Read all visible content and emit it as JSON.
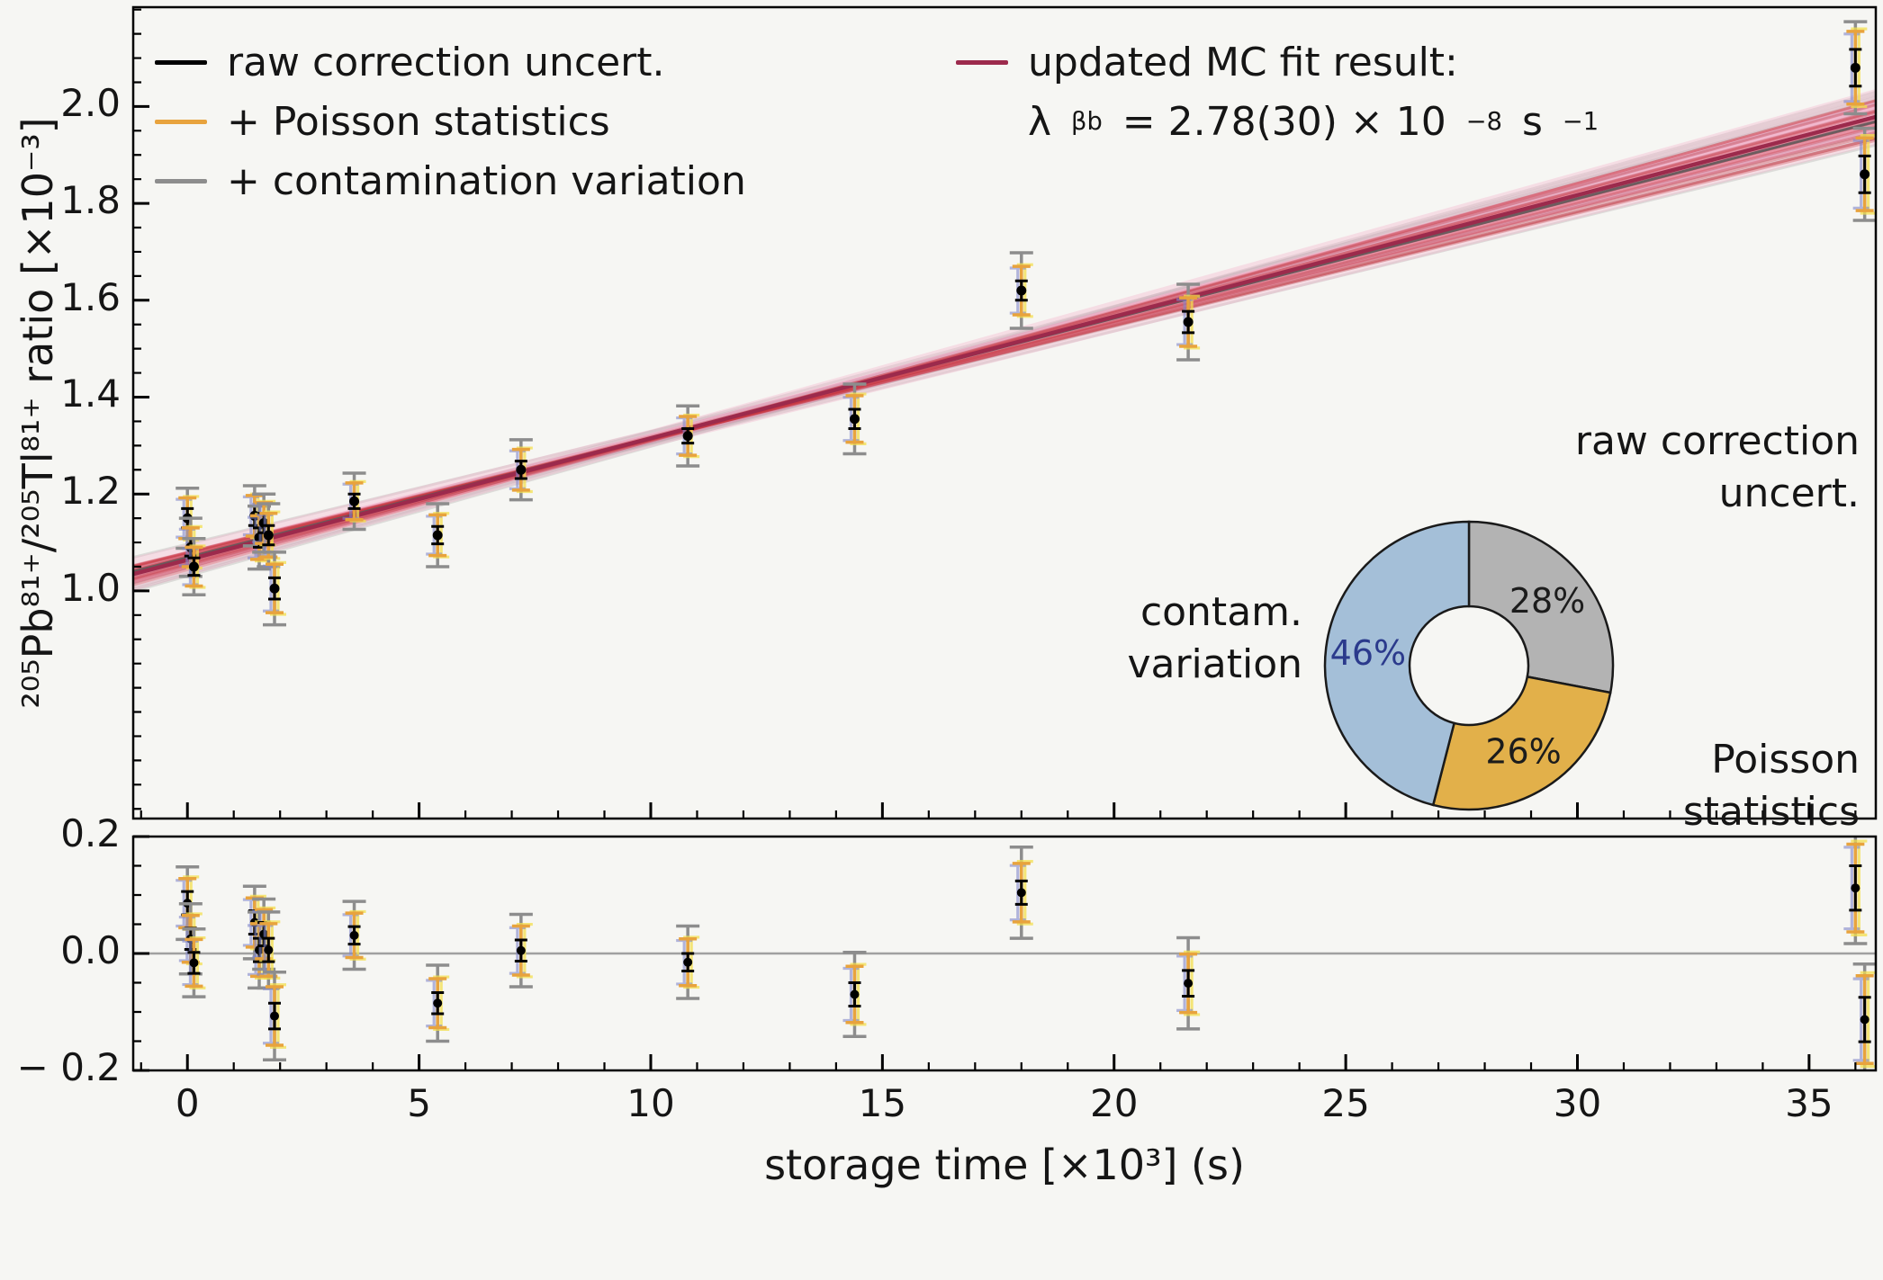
{
  "figure": {
    "background": "#f6f6f3",
    "border_color": "#000000"
  },
  "chart_data": {
    "type": "scatter",
    "title": "",
    "xlabel": "storage time [×10³] (s)",
    "ylabel": "²⁰⁵Pb⁸¹⁺/²⁰⁵Tl⁸¹⁺ ratio [×10⁻³]",
    "xticks": [
      {
        "v": 0,
        "label": "0"
      },
      {
        "v": 5,
        "label": "5"
      },
      {
        "v": 10,
        "label": "10"
      },
      {
        "v": 15,
        "label": "15"
      },
      {
        "v": 20,
        "label": "20"
      },
      {
        "v": 25,
        "label": "25"
      },
      {
        "v": 30,
        "label": "30"
      },
      {
        "v": 35,
        "label": "35"
      }
    ],
    "main_panel": {
      "xlim": [
        -1.17,
        36.44
      ],
      "ylim": [
        0.53,
        2.205
      ],
      "yticks": [
        {
          "v": 1.0,
          "label": "1.0"
        },
        {
          "v": 1.2,
          "label": "1.2"
        },
        {
          "v": 1.4,
          "label": "1.4"
        },
        {
          "v": 1.6,
          "label": "1.6"
        },
        {
          "v": 1.8,
          "label": "1.8"
        },
        {
          "v": 2.0,
          "label": "2.0"
        }
      ]
    },
    "residual_panel": {
      "ylim": [
        -0.2,
        0.2
      ],
      "yticks": [
        {
          "v": 0.2,
          "label": "0.2"
        },
        {
          "v": 0.0,
          "label": "0.0"
        },
        {
          "v": -0.2,
          "label": "− 0.2"
        }
      ]
    },
    "points": [
      {
        "x": 0.0,
        "y": 1.15,
        "resid": 0.086,
        "e_raw": 0.02,
        "e_poisson": 0.042,
        "e_contam": 0.062
      },
      {
        "x": 0.07,
        "y": 1.09,
        "resid": 0.025,
        "e_raw": 0.018,
        "e_poisson": 0.04,
        "e_contam": 0.06
      },
      {
        "x": 0.14,
        "y": 1.05,
        "resid": -0.016,
        "e_raw": 0.018,
        "e_poisson": 0.04,
        "e_contam": 0.058
      },
      {
        "x": 1.45,
        "y": 1.155,
        "resid": 0.053,
        "e_raw": 0.02,
        "e_poisson": 0.042,
        "e_contam": 0.062
      },
      {
        "x": 1.55,
        "y": 1.11,
        "resid": 0.006,
        "e_raw": 0.02,
        "e_poisson": 0.045,
        "e_contam": 0.065
      },
      {
        "x": 1.65,
        "y": 1.14,
        "resid": 0.033,
        "e_raw": 0.02,
        "e_poisson": 0.042,
        "e_contam": 0.06
      },
      {
        "x": 1.75,
        "y": 1.115,
        "resid": 0.006,
        "e_raw": 0.02,
        "e_poisson": 0.045,
        "e_contam": 0.065
      },
      {
        "x": 1.88,
        "y": 1.005,
        "resid": -0.107,
        "e_raw": 0.022,
        "e_poisson": 0.05,
        "e_contam": 0.075
      },
      {
        "x": 3.6,
        "y": 1.185,
        "resid": 0.031,
        "e_raw": 0.015,
        "e_poisson": 0.038,
        "e_contam": 0.058
      },
      {
        "x": 5.4,
        "y": 1.115,
        "resid": -0.085,
        "e_raw": 0.018,
        "e_poisson": 0.042,
        "e_contam": 0.065
      },
      {
        "x": 7.2,
        "y": 1.25,
        "resid": 0.005,
        "e_raw": 0.018,
        "e_poisson": 0.042,
        "e_contam": 0.062
      },
      {
        "x": 10.8,
        "y": 1.32,
        "resid": -0.015,
        "e_raw": 0.015,
        "e_poisson": 0.04,
        "e_contam": 0.062
      },
      {
        "x": 14.4,
        "y": 1.355,
        "resid": -0.07,
        "e_raw": 0.02,
        "e_poisson": 0.048,
        "e_contam": 0.072
      },
      {
        "x": 18.0,
        "y": 1.62,
        "resid": 0.104,
        "e_raw": 0.02,
        "e_poisson": 0.05,
        "e_contam": 0.078
      },
      {
        "x": 21.6,
        "y": 1.555,
        "resid": -0.051,
        "e_raw": 0.022,
        "e_poisson": 0.05,
        "e_contam": 0.078
      },
      {
        "x": 36.0,
        "y": 2.08,
        "resid": 0.112,
        "e_raw": 0.038,
        "e_poisson": 0.075,
        "e_contam": 0.095
      },
      {
        "x": 36.2,
        "y": 1.86,
        "resid": -0.113,
        "e_raw": 0.038,
        "e_poisson": 0.075,
        "e_contam": 0.095
      }
    ],
    "errorbars": {
      "raw_color": "#000000",
      "poisson_color": "#e8a33d",
      "contam_color": "#8d8d8d",
      "mc_yellow_color": "#f3df4e",
      "mc_blue_color": "#8287c9"
    },
    "fit": {
      "legend_title": "updated MC fit result:",
      "legend_value_rich": [
        {
          "t": "λ"
        },
        {
          "t": "βb",
          "sub": true
        },
        {
          "t": " = 2.78(30) × 10"
        },
        {
          "t": "−8",
          "sup": true
        },
        {
          "t": " s"
        },
        {
          "t": "−1",
          "sup": true
        }
      ],
      "intercept": 1.064,
      "slope": 0.0251,
      "color": "#9c2a4c",
      "mc_gray_color": "#9a9a9a",
      "mc_red_color": "#c8323c",
      "band_outer_color": "#f5b5cd",
      "band_inner_color": "#ef94b8"
    },
    "legend": {
      "items": [
        {
          "label": "raw correction uncert.",
          "color": "#000000"
        },
        {
          "label": "+ Poisson statistics",
          "color": "#e8a33d"
        },
        {
          "label": "+ contamination variation",
          "color": "#8d8d8d"
        }
      ]
    },
    "donut": {
      "slices": [
        {
          "label": "raw correction uncert.",
          "outside_label": "raw correction\nuncert.",
          "pct": 28,
          "pct_label": "28%",
          "color": "#b3b3b3",
          "pct_color": "#1c1c1c"
        },
        {
          "label": "Poisson statistics",
          "outside_label": "Poisson\nstatistics",
          "pct": 26,
          "pct_label": "26%",
          "color": "#e2b04a",
          "pct_color": "#1c1c1c"
        },
        {
          "label": "contam. variation",
          "outside_label": "contam.\nvariation",
          "pct": 46,
          "pct_label": "46%",
          "color": "#a4bfd8",
          "pct_color": "#2b3a8c"
        }
      ]
    }
  }
}
